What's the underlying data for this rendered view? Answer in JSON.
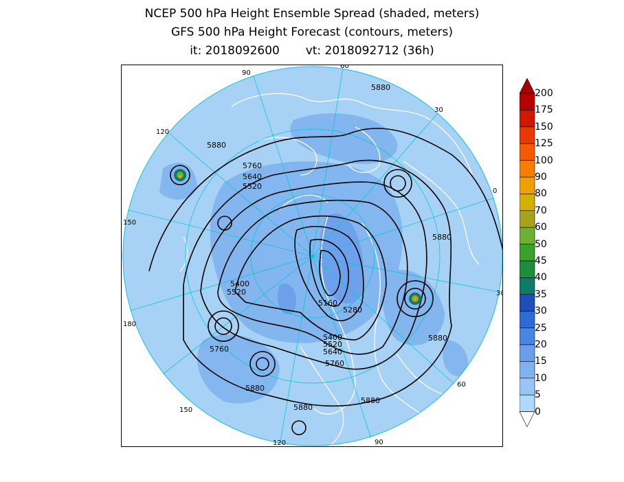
{
  "titles": {
    "line1": "NCEP 500 hPa Height Ensemble Spread (shaded, meters)",
    "line2": "GFS 500 hPa Height Forecast (contours, meters)",
    "line3": "it: 2018092600       vt: 2018092712 (36h)"
  },
  "colorbar": {
    "levels": [
      "0",
      "5",
      "10",
      "15",
      "20",
      "25",
      "30",
      "35",
      "40",
      "45",
      "50",
      "60",
      "70",
      "80",
      "90",
      "100",
      "125",
      "150",
      "175",
      "200"
    ],
    "colors": [
      "#b0d8fa",
      "#97c6f5",
      "#7fb2ef",
      "#6a9deb",
      "#4b85e4",
      "#2f6bd6",
      "#1e4fb8",
      "#0d7a6a",
      "#1b8f3c",
      "#3aa12a",
      "#6db032",
      "#a6a21c",
      "#d4b000",
      "#f0a000",
      "#f57f00",
      "#f55a00",
      "#e63a00",
      "#d01800",
      "#b80000"
    ],
    "top_color": "#a80000"
  },
  "map": {
    "ocean_color": "#a8d2f5",
    "spread_patch_color": "#7fb2ef",
    "longitude_labels": [
      "90",
      "60",
      "30",
      "0",
      "30",
      "60",
      "90",
      "120",
      "150",
      "180",
      "150",
      "120"
    ],
    "contour_labels": [
      "5880",
      "5880",
      "5760",
      "5640",
      "5520",
      "5880",
      "5400",
      "5520",
      "5160",
      "5280",
      "5400",
      "5520",
      "5640",
      "5760",
      "5760",
      "5880",
      "5880",
      "5880",
      "5880"
    ]
  }
}
